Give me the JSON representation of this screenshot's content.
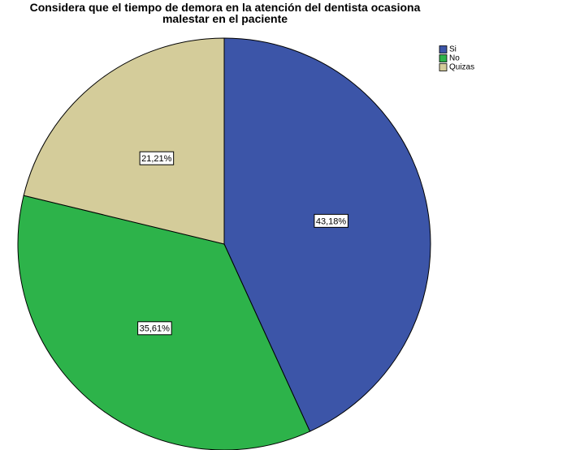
{
  "chart_data": {
    "type": "pie",
    "title": "Considera que el tiempo de demora en la atención del dentista ocasiona malestar en el paciente",
    "categories": [
      "Si",
      "No",
      "Quizas"
    ],
    "values": [
      43.18,
      35.61,
      21.21
    ],
    "value_labels": [
      "43,18%",
      "35,61%",
      "21,21%"
    ],
    "colors": [
      "#3c55a8",
      "#2db34a",
      "#d4cc9a"
    ],
    "legend": "top-right"
  }
}
